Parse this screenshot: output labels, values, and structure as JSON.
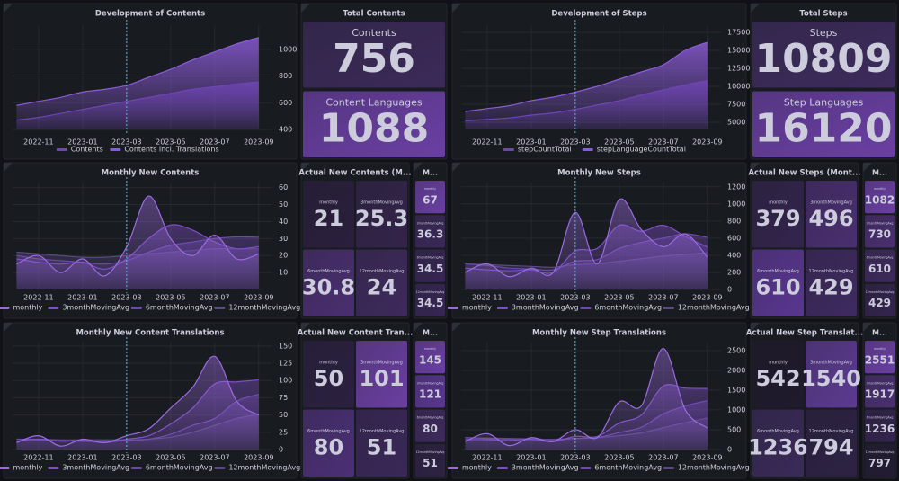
{
  "chart_data": [
    {
      "type": "area",
      "title": "Development of Contents",
      "categories": [
        null,
        "2022-11",
        null,
        "2023-01",
        null,
        "2023-03",
        null,
        "2023-05",
        null,
        "2023-07",
        null,
        "2023-09"
      ],
      "series": [
        {
          "name": "Contents",
          "color": "#6f45b5",
          "values": [
            470,
            490,
            520,
            550,
            580,
            610,
            640,
            670,
            700,
            720,
            740,
            756
          ]
        },
        {
          "name": "Contents incl. Translations",
          "color": "#8a5bd6",
          "values": [
            580,
            610,
            640,
            680,
            700,
            730,
            790,
            850,
            920,
            980,
            1040,
            1088
          ]
        }
      ],
      "ylim": [
        400,
        1180
      ],
      "yticks": [
        400,
        600,
        800,
        1000
      ],
      "grid": true
    },
    {
      "type": "area",
      "title": "Development of Steps",
      "categories": [
        null,
        "2022-11",
        null,
        "2023-01",
        null,
        "2023-03",
        null,
        "2023-05",
        null,
        "2023-07",
        null,
        "2023-09"
      ],
      "series": [
        {
          "name": "stepCountTotal",
          "color": "#6f45b5",
          "values": [
            5200,
            5400,
            5600,
            6000,
            6300,
            6800,
            7400,
            8000,
            8800,
            9500,
            10200,
            10809
          ]
        },
        {
          "name": "stepLanguageCountTotal",
          "color": "#8a5bd6",
          "values": [
            6500,
            6900,
            7300,
            8000,
            8500,
            9200,
            10000,
            11000,
            12000,
            13000,
            15000,
            16120
          ]
        }
      ],
      "ylim": [
        4000,
        18500
      ],
      "yticks": [
        5000,
        7500,
        10000,
        12500,
        15000,
        17500
      ],
      "grid": true
    },
    {
      "type": "area",
      "title": "Monthly New Contents",
      "categories": [
        null,
        "2022-11",
        null,
        "2023-01",
        null,
        "2023-03",
        null,
        "2023-05",
        null,
        "2023-07",
        null,
        "2023-09"
      ],
      "series": [
        {
          "name": "monthly",
          "color": "#9b6be0",
          "values": [
            15,
            20,
            10,
            18,
            8,
            25,
            55,
            30,
            20,
            32,
            18,
            21
          ]
        },
        {
          "name": "3monthMovingAvg",
          "color": "#7d4fc4",
          "values": [
            18,
            16,
            15,
            16,
            12,
            18,
            30,
            38,
            35,
            28,
            24,
            25.3
          ]
        },
        {
          "name": "6monthMovingAvg",
          "color": "#6a49a8",
          "values": [
            20,
            18,
            17,
            16,
            15,
            17,
            22,
            26,
            28,
            30,
            31,
            30.8
          ]
        },
        {
          "name": "12monthMovingAvg",
          "color": "#5a4a80",
          "values": [
            22,
            21,
            20,
            19,
            19,
            20,
            21,
            22,
            23,
            24,
            24,
            24
          ]
        }
      ],
      "ylim": [
        0,
        63
      ],
      "yticks": [
        10,
        20,
        30,
        40,
        50,
        60
      ],
      "grid": true
    },
    {
      "type": "area",
      "title": "Monthly New Steps",
      "categories": [
        null,
        "2022-11",
        null,
        "2023-01",
        null,
        "2023-03",
        null,
        "2023-05",
        null,
        "2023-07",
        null,
        "2023-09"
      ],
      "series": [
        {
          "name": "monthly",
          "color": "#9b6be0",
          "values": [
            200,
            300,
            150,
            250,
            200,
            900,
            300,
            1050,
            700,
            500,
            650,
            379
          ]
        },
        {
          "name": "3monthMovingAvg",
          "color": "#7d4fc4",
          "values": [
            250,
            230,
            220,
            230,
            200,
            450,
            480,
            750,
            680,
            750,
            620,
            496
          ]
        },
        {
          "name": "6monthMovingAvg",
          "color": "#6a49a8",
          "values": [
            300,
            280,
            250,
            240,
            230,
            330,
            350,
            480,
            550,
            600,
            650,
            610
          ]
        },
        {
          "name": "12monthMovingAvg",
          "color": "#5a4a80",
          "values": [
            300,
            290,
            280,
            270,
            260,
            290,
            300,
            330,
            360,
            390,
            410,
            429
          ]
        }
      ],
      "ylim": [
        0,
        1250
      ],
      "yticks": [
        0,
        200,
        400,
        600,
        800,
        1000,
        1200
      ],
      "grid": true
    },
    {
      "type": "area",
      "title": "Monthly New Content Translations",
      "categories": [
        null,
        "2022-11",
        null,
        "2023-01",
        null,
        "2023-03",
        null,
        "2023-05",
        null,
        "2023-07",
        null,
        "2023-09"
      ],
      "series": [
        {
          "name": "monthly",
          "color": "#9b6be0",
          "values": [
            10,
            20,
            5,
            15,
            10,
            20,
            30,
            60,
            90,
            135,
            70,
            50
          ]
        },
        {
          "name": "3monthMovingAvg",
          "color": "#7d4fc4",
          "values": [
            12,
            15,
            12,
            13,
            10,
            15,
            20,
            37,
            60,
            95,
            98,
            101
          ]
        },
        {
          "name": "6monthMovingAvg",
          "color": "#6a49a8",
          "values": [
            15,
            14,
            13,
            12,
            12,
            13,
            15,
            22,
            35,
            45,
            70,
            80
          ]
        },
        {
          "name": "12monthMovingAvg",
          "color": "#5a4a80",
          "values": [
            15,
            15,
            14,
            14,
            14,
            14,
            15,
            18,
            25,
            35,
            45,
            51
          ]
        }
      ],
      "ylim": [
        0,
        155
      ],
      "yticks": [
        0,
        25,
        50,
        75,
        100,
        125,
        150
      ],
      "grid": true
    },
    {
      "type": "area",
      "title": "Monthly New Step Translations",
      "categories": [
        null,
        "2022-11",
        null,
        "2023-01",
        null,
        "2023-03",
        null,
        "2023-05",
        null,
        "2023-07",
        null,
        "2023-09"
      ],
      "series": [
        {
          "name": "monthly",
          "color": "#9b6be0",
          "values": [
            200,
            400,
            100,
            300,
            200,
            500,
            300,
            1200,
            1100,
            2551,
            1000,
            542
          ]
        },
        {
          "name": "3monthMovingAvg",
          "color": "#7d4fc4",
          "values": [
            250,
            250,
            230,
            260,
            200,
            330,
            330,
            670,
            870,
            1600,
            1550,
            1540
          ]
        },
        {
          "name": "6monthMovingAvg",
          "color": "#6a49a8",
          "values": [
            300,
            280,
            260,
            250,
            240,
            280,
            300,
            430,
            560,
            900,
            1100,
            1236
          ]
        },
        {
          "name": "12monthMovingAvg",
          "color": "#5a4a80",
          "values": [
            300,
            290,
            280,
            270,
            260,
            280,
            300,
            350,
            420,
            550,
            680,
            794
          ]
        }
      ],
      "ylim": [
        0,
        2700
      ],
      "yticks": [
        0,
        500,
        1000,
        1500,
        2000,
        2500
      ],
      "grid": true
    }
  ],
  "stats": [
    {
      "title": "Total Contents",
      "tiles": [
        {
          "label": "Contents",
          "value": 756,
          "color": "#3b2a58"
        },
        {
          "label": "Content Languages",
          "value": 1088,
          "color": "#6a3fa3"
        }
      ]
    },
    {
      "title": "Total Steps",
      "tiles": [
        {
          "label": "Steps",
          "value": 10809,
          "color": "#3d2b5c"
        },
        {
          "label": "Step Languages",
          "value": 16120,
          "color": "#6a3fa3"
        }
      ]
    },
    {
      "title": "Actual New Contents (M...",
      "tiles": [
        {
          "label": "monthly",
          "value": 21,
          "color": "#2a1f3d"
        },
        {
          "label": "3monthMovingAvg",
          "value": 25.3,
          "color": "#33244a"
        },
        {
          "label": "6monthMovingAvg",
          "value": 30.8,
          "color": "#4a2f70"
        },
        {
          "label": "12monthMovingAvg",
          "value": 24,
          "color": "#3e2a5c"
        }
      ]
    },
    {
      "title": "M...",
      "tiles": [
        {
          "label": "monthly",
          "value": 67,
          "color": "#6a3fa3"
        },
        {
          "label": "3monthMovingAvg",
          "value": 36.3,
          "color": "#3a2858"
        },
        {
          "label": "6monthMovingAvg",
          "value": 34.5,
          "color": "#372654"
        },
        {
          "label": "12monthMovingAvg",
          "value": 34.5,
          "color": "#372654"
        }
      ]
    },
    {
      "title": "Actual New Steps (Mont...",
      "tiles": [
        {
          "label": "monthly",
          "value": 379,
          "color": "#33244c"
        },
        {
          "label": "3monthMovingAvg",
          "value": 496,
          "color": "#4a2f70"
        },
        {
          "label": "6monthMovingAvg",
          "value": 610,
          "color": "#5a3690"
        },
        {
          "label": "12monthMovingAvg",
          "value": 429,
          "color": "#3f2a60"
        }
      ]
    },
    {
      "title": "M...",
      "tiles": [
        {
          "label": "monthly",
          "value": 1082,
          "color": "#6a3fa3"
        },
        {
          "label": "3monthMovingAvg",
          "value": 730,
          "color": "#4a2f70"
        },
        {
          "label": "6monthMovingAvg",
          "value": 610,
          "color": "#3e2a5c"
        },
        {
          "label": "12monthMovingAvg",
          "value": 429,
          "color": "#33244c"
        }
      ]
    },
    {
      "title": "Actual New Content Tran...",
      "tiles": [
        {
          "label": "monthly",
          "value": 50,
          "color": "#2b2040"
        },
        {
          "label": "3monthMovingAvg",
          "value": 101,
          "color": "#6a3fa0"
        },
        {
          "label": "6monthMovingAvg",
          "value": 80,
          "color": "#4b3075"
        },
        {
          "label": "12monthMovingAvg",
          "value": 51,
          "color": "#3a2858"
        }
      ]
    },
    {
      "title": "M...",
      "tiles": [
        {
          "label": "monthly",
          "value": 145,
          "color": "#6a3fa3"
        },
        {
          "label": "3monthMovingAvg",
          "value": 121,
          "color": "#5a3690"
        },
        {
          "label": "6monthMovingAvg",
          "value": 80,
          "color": "#3e2a5c"
        },
        {
          "label": "12monthMovingAvg",
          "value": 51,
          "color": "#2e2244"
        }
      ]
    },
    {
      "title": "Actual New Step Translat...",
      "tiles": [
        {
          "label": "monthly",
          "value": 542,
          "color": "#1f1a2c"
        },
        {
          "label": "3monthMovingAvg",
          "value": 1540,
          "color": "#5c3a90"
        },
        {
          "label": "6monthMovingAvg",
          "value": 1236,
          "color": "#3a2a58"
        },
        {
          "label": "12monthMovingAvg",
          "value": 794,
          "color": "#2e2244"
        }
      ]
    },
    {
      "title": "M...",
      "tiles": [
        {
          "label": "monthly",
          "value": 2551,
          "color": "#6a3fa3"
        },
        {
          "label": "3monthMovingAvg",
          "value": 1917,
          "color": "#4a2f70"
        },
        {
          "label": "6monthMovingAvg",
          "value": 1236,
          "color": "#33244c"
        },
        {
          "label": "12monthMovingAvg",
          "value": 797,
          "color": "#231c33"
        }
      ]
    }
  ]
}
